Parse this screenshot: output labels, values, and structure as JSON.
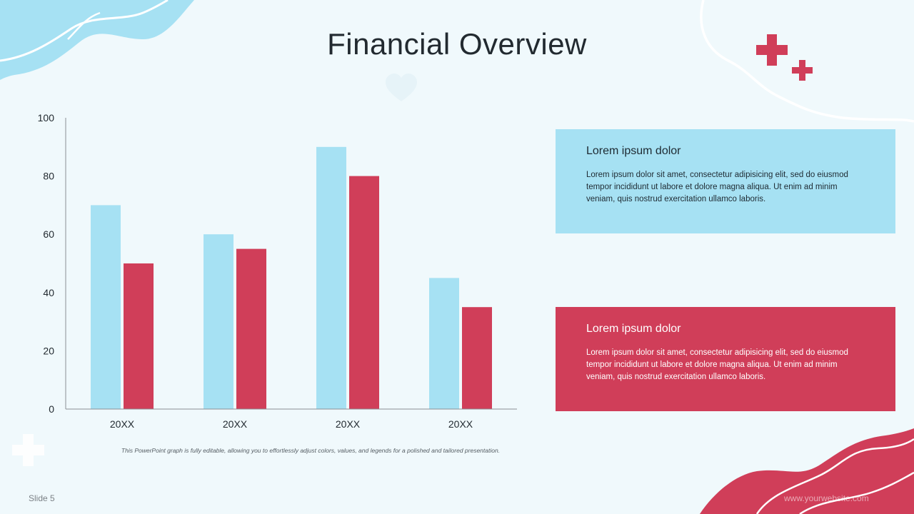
{
  "slide": {
    "title": "Financial Overview",
    "caption": "This PowerPoint graph is fully editable, allowing you to effortlessly adjust colors, values, and legends for a polished and tailored presentation.",
    "footer": "Slide 5",
    "website": "www.yourwebsite.com"
  },
  "cards": [
    {
      "title": "Lorem ipsum dolor",
      "body": "Lorem ipsum dolor sit amet, consectetur adipisicing elit, sed do eiusmod tempor incididunt ut labore et dolore magna aliqua. Ut enim ad minim veniam, quis nostrud exercitation ullamco laboris."
    },
    {
      "title": "Lorem ipsum dolor",
      "body": "Lorem ipsum dolor sit amet, consectetur adipisicing elit, sed do eiusmod tempor incididunt ut labore et dolore magna aliqua. Ut enim ad minim veniam, quis nostrud exercitation ullamco laboris."
    }
  ],
  "colors": {
    "series_1": "#a6e1f3",
    "series_2": "#d03e59",
    "background": "#f0f9fc"
  },
  "chart_data": {
    "type": "bar",
    "title": "",
    "xlabel": "",
    "ylabel": "",
    "categories": [
      "20XX",
      "20XX",
      "20XX",
      "20XX"
    ],
    "series": [
      {
        "values": [
          70,
          60,
          90,
          45
        ]
      },
      {
        "values": [
          50,
          55,
          80,
          35
        ]
      }
    ],
    "ylim": [
      0,
      100
    ],
    "yticks": [
      0,
      20,
      40,
      60,
      80,
      100
    ],
    "grid": false,
    "legend": "none"
  }
}
